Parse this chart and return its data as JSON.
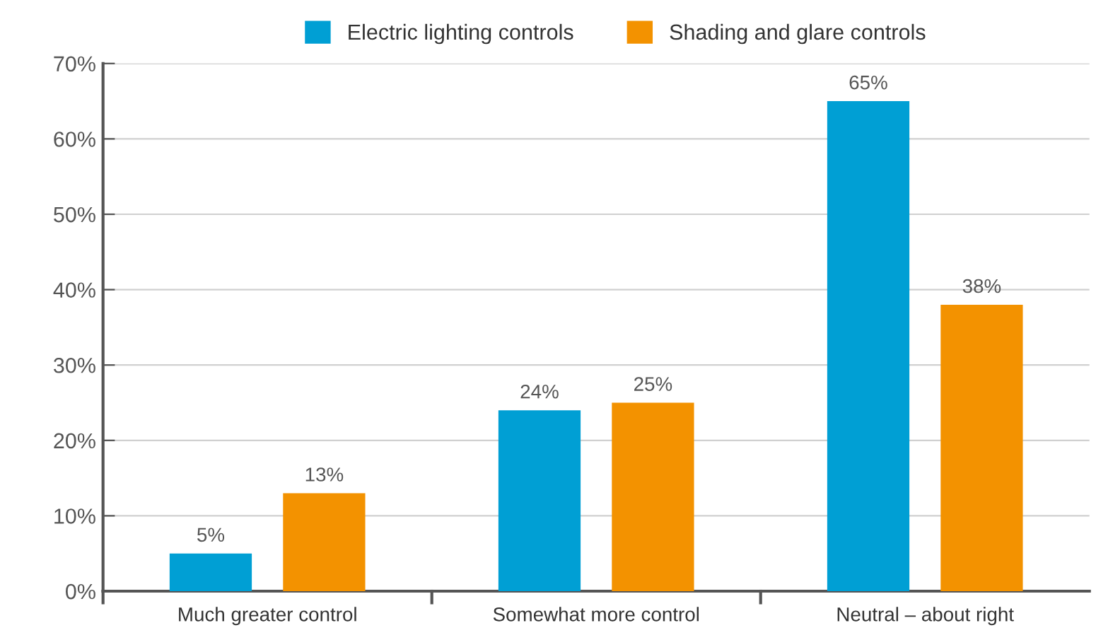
{
  "chart_data": {
    "type": "bar",
    "categories": [
      "Much greater control",
      "Somewhat more control",
      "Neutral – about right"
    ],
    "series": [
      {
        "name": "Electric lighting controls",
        "color": "#009fd4",
        "values": [
          5,
          24,
          65
        ],
        "value_labels": [
          "5%",
          "24%",
          "65%"
        ]
      },
      {
        "name": "Shading and glare controls",
        "color": "#f39200",
        "values": [
          13,
          25,
          38
        ],
        "value_labels": [
          "13%",
          "25%",
          "38%"
        ]
      }
    ],
    "ylim": [
      0,
      70
    ],
    "yticks": [
      {
        "value": 0,
        "label": "0%"
      },
      {
        "value": 10,
        "label": "10%"
      },
      {
        "value": 20,
        "label": "20%"
      },
      {
        "value": 30,
        "label": "30%"
      },
      {
        "value": 40,
        "label": "40%"
      },
      {
        "value": 50,
        "label": "50%"
      },
      {
        "value": 60,
        "label": "60%"
      },
      {
        "value": 70,
        "label": "70%"
      }
    ],
    "grid": "y",
    "legend": "top"
  }
}
